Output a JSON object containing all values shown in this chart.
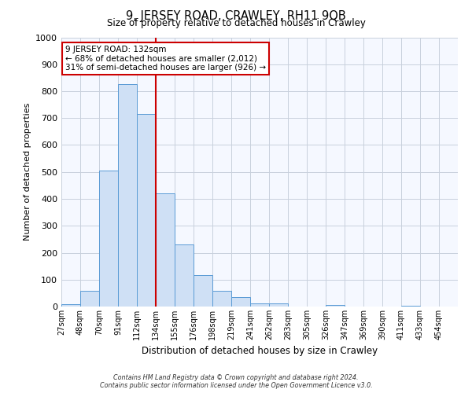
{
  "title": "9, JERSEY ROAD, CRAWLEY, RH11 9QB",
  "subtitle": "Size of property relative to detached houses in Crawley",
  "xlabel": "Distribution of detached houses by size in Crawley",
  "ylabel": "Number of detached properties",
  "bin_labels": [
    "27sqm",
    "48sqm",
    "70sqm",
    "91sqm",
    "112sqm",
    "134sqm",
    "155sqm",
    "176sqm",
    "198sqm",
    "219sqm",
    "241sqm",
    "262sqm",
    "283sqm",
    "305sqm",
    "326sqm",
    "347sqm",
    "369sqm",
    "390sqm",
    "411sqm",
    "433sqm",
    "454sqm"
  ],
  "bin_values": [
    10,
    57,
    505,
    825,
    715,
    420,
    232,
    118,
    57,
    35,
    13,
    13,
    0,
    0,
    5,
    0,
    0,
    0,
    3,
    0,
    0
  ],
  "bar_fill_color": "#cfe0f5",
  "bar_edge_color": "#5a9bd5",
  "property_label": "9 JERSEY ROAD: 132sqm",
  "annotation_line1": "← 68% of detached houses are smaller (2,012)",
  "annotation_line2": "31% of semi-detached houses are larger (926) →",
  "vline_color": "#cc0000",
  "vline_x": 134,
  "annotation_box_bg": "#ffffff",
  "annotation_box_edge": "#cc0000",
  "footer_line1": "Contains HM Land Registry data © Crown copyright and database right 2024.",
  "footer_line2": "Contains public sector information licensed under the Open Government Licence v3.0.",
  "ylim": [
    0,
    1000
  ],
  "yticks": [
    0,
    100,
    200,
    300,
    400,
    500,
    600,
    700,
    800,
    900,
    1000
  ],
  "grid_color": "#c8d0dc",
  "background_color": "#ffffff",
  "plot_bg_color": "#f5f8ff"
}
